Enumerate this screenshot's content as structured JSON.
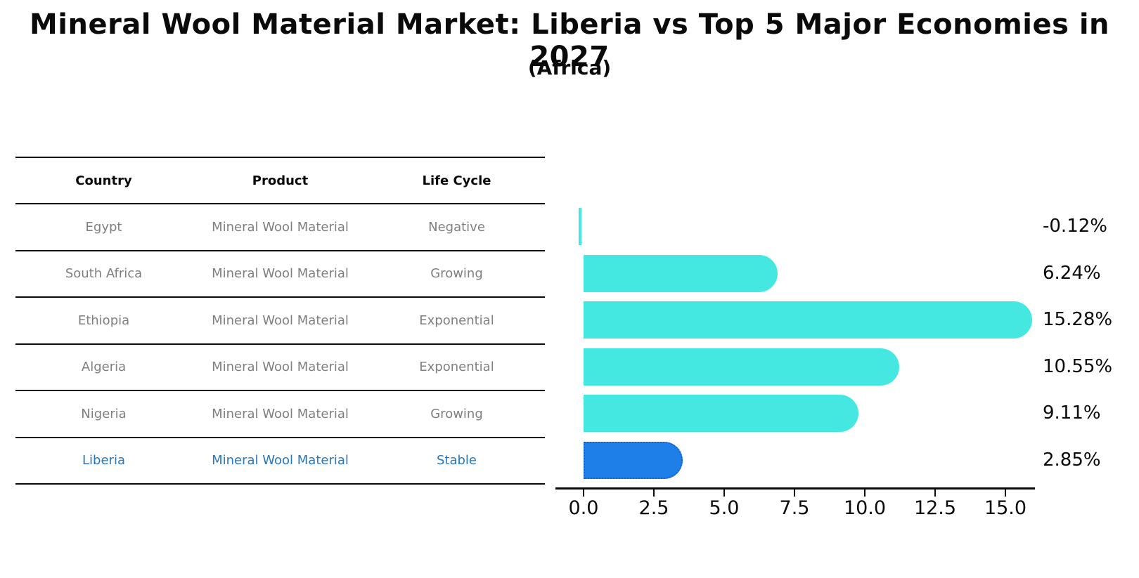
{
  "title": "Mineral Wool Material Market: Liberia vs Top 5 Major Economies in 2027",
  "subtitle": "(Africa)",
  "table": {
    "headers": [
      "Country",
      "Product",
      "Life Cycle"
    ],
    "rows": [
      {
        "country": "Egypt",
        "product": "Mineral Wool Material",
        "life_cycle": "Negative",
        "highlight": false
      },
      {
        "country": "South Africa",
        "product": "Mineral Wool Material",
        "life_cycle": "Growing",
        "highlight": false
      },
      {
        "country": "Ethiopia",
        "product": "Mineral Wool Material",
        "life_cycle": "Exponential",
        "highlight": false
      },
      {
        "country": "Algeria",
        "product": "Mineral Wool Material",
        "life_cycle": "Exponential",
        "highlight": false
      },
      {
        "country": "Nigeria",
        "product": "Mineral Wool Material",
        "life_cycle": "Growing",
        "highlight": false
      },
      {
        "country": "Liberia",
        "product": "Mineral Wool Material",
        "life_cycle": "Stable",
        "highlight": true
      }
    ]
  },
  "chart_data": {
    "type": "bar",
    "orientation": "horizontal",
    "categories": [
      "Egypt",
      "South Africa",
      "Ethiopia",
      "Algeria",
      "Nigeria",
      "Liberia"
    ],
    "values": [
      -0.12,
      6.24,
      15.28,
      10.55,
      9.11,
      2.85
    ],
    "value_labels": [
      "-0.12%",
      "6.24%",
      "15.28%",
      "10.55%",
      "9.11%",
      "2.85%"
    ],
    "x_ticks": [
      0.0,
      2.5,
      5.0,
      7.5,
      10.0,
      12.5,
      15.0
    ],
    "x_tick_labels": [
      "0.0",
      "2.5",
      "5.0",
      "7.5",
      "10.0",
      "12.5",
      "15.0"
    ],
    "xlim": [
      -1,
      16
    ],
    "xlabel": "",
    "ylabel": "",
    "grid": false,
    "legend": false,
    "bar_color": "#45e8e1",
    "highlight_color": "#1f7fe8",
    "highlight_index": 5,
    "highlight_style": "dotted-border"
  }
}
